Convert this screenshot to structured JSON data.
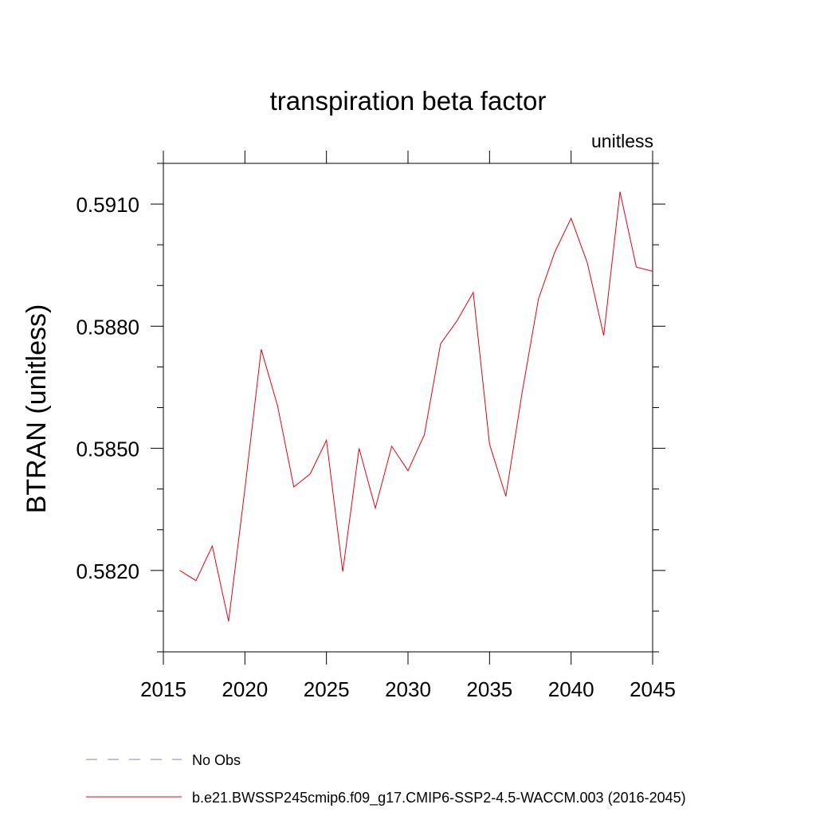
{
  "chart_data": {
    "type": "line",
    "title": "transpiration beta factor",
    "subtitle": "unitless",
    "xlabel": "",
    "ylabel": "BTRAN  (unitless)",
    "xlim": [
      2015,
      2045
    ],
    "ylim": [
      0.58,
      0.592
    ],
    "x_ticks": [
      2015,
      2020,
      2025,
      2030,
      2035,
      2040,
      2045
    ],
    "x_tick_labels": [
      "2015",
      "2020",
      "2025",
      "2030",
      "2035",
      "2040",
      "2045"
    ],
    "y_ticks": [
      0.582,
      0.585,
      0.588,
      0.591
    ],
    "y_tick_labels": [
      "0.5820",
      "0.5850",
      "0.5880",
      "0.5910"
    ],
    "grid": false,
    "legend_position": "bottom",
    "series": [
      {
        "name": "b.e21.BWSSP245cmip6.f09_g17.CMIP6-SSP2-4.5-WACCM.003 (2016-2045)",
        "color": "#e8000b",
        "style": "solid",
        "x": [
          2016,
          2017,
          2018,
          2019,
          2020,
          2021,
          2022,
          2023,
          2024,
          2025,
          2026,
          2027,
          2028,
          2029,
          2030,
          2031,
          2032,
          2033,
          2034,
          2035,
          2036,
          2037,
          2038,
          2039,
          2040,
          2041,
          2042,
          2043,
          2044,
          2045
        ],
        "values": [
          0.582,
          0.58175,
          0.5826,
          0.58075,
          0.584,
          0.58743,
          0.58605,
          0.58405,
          0.58437,
          0.5852,
          0.58197,
          0.585,
          0.58353,
          0.58505,
          0.58445,
          0.58533,
          0.58757,
          0.58813,
          0.58883,
          0.5851,
          0.58382,
          0.58638,
          0.58867,
          0.58982,
          0.59065,
          0.58955,
          0.58777,
          0.5913,
          0.58945,
          0.58935
        ]
      },
      {
        "name": "No Obs",
        "color": "#8080c0",
        "style": "dashed",
        "x": [],
        "values": []
      }
    ]
  }
}
